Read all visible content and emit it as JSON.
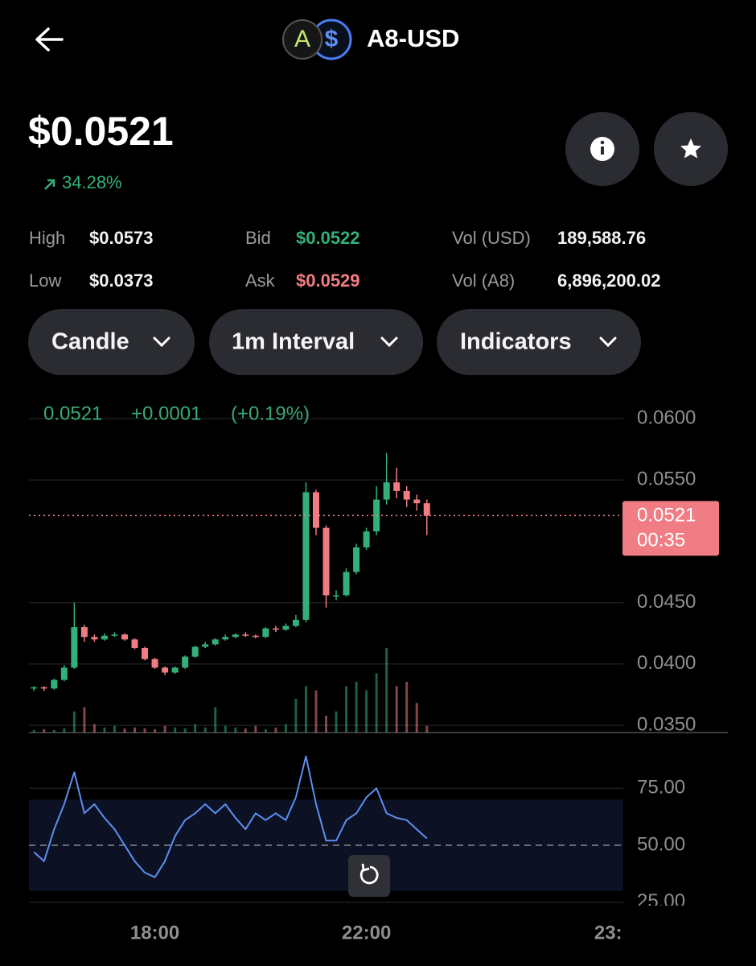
{
  "header": {
    "title": "A8-USD"
  },
  "price": {
    "value": "$0.0521",
    "change": "34.28%"
  },
  "stats": [
    {
      "label": "High",
      "value": "$0.0573"
    },
    {
      "label": "Low",
      "value": "$0.0373"
    },
    {
      "label": "Bid",
      "value": "$0.0522"
    },
    {
      "label": "Ask",
      "value": "$0.0529"
    },
    {
      "label": "Vol (USD)",
      "value": "189,588.76"
    },
    {
      "label": "Vol (A8)",
      "value": "6,896,200.02"
    }
  ],
  "controls": [
    "Candle",
    "1m Interval",
    "Indicators"
  ],
  "chart_data": {
    "type": "candlestick",
    "categories": [
      null,
      null,
      null,
      null,
      null,
      null,
      null,
      null,
      null,
      null,
      null,
      null,
      "18:00",
      null,
      null,
      null,
      null,
      null,
      null,
      null,
      null,
      null,
      null,
      null,
      null,
      null,
      null,
      null,
      null,
      null,
      null,
      null,
      null,
      "22:00",
      null,
      null,
      null,
      null,
      null,
      null,
      null,
      null,
      null,
      null,
      null,
      null,
      null,
      null,
      null,
      null,
      null,
      null,
      null,
      null,
      null,
      null,
      null,
      "23:",
      null
    ],
    "open": [
      0.038,
      0.0381,
      0.038,
      0.0387,
      0.0397,
      0.043,
      0.0422,
      0.042,
      0.0423,
      0.0424,
      0.042,
      0.0413,
      0.0404,
      0.0397,
      0.0393,
      0.0397,
      0.0406,
      0.0414,
      0.0416,
      0.042,
      0.0422,
      0.0424,
      0.0423,
      0.0422,
      0.0429,
      0.0428,
      0.0431,
      0.0436,
      0.054,
      0.0511,
      0.0456,
      0.0456,
      0.0475,
      0.0495,
      0.0508,
      0.0534,
      0.0548,
      0.0541,
      0.0534,
      0.0531,
      null,
      null,
      null,
      null,
      null,
      null,
      null,
      null,
      null,
      null,
      null,
      null,
      null,
      null,
      null,
      null,
      null,
      null,
      null
    ],
    "high": [
      0.0382,
      0.0382,
      0.0388,
      0.0399,
      0.045,
      0.0432,
      0.0424,
      0.0425,
      0.0426,
      0.0425,
      0.0421,
      0.0414,
      0.0405,
      0.0398,
      0.0398,
      0.0407,
      0.0415,
      0.0418,
      0.0421,
      0.0424,
      0.0425,
      0.0426,
      0.0424,
      0.043,
      0.0431,
      0.0433,
      0.044,
      0.0548,
      0.0542,
      0.0513,
      0.046,
      0.0478,
      0.0498,
      0.0511,
      0.0545,
      0.0572,
      0.056,
      0.0545,
      0.0538,
      0.0534,
      null,
      null,
      null,
      null,
      null,
      null,
      null,
      null,
      null,
      null,
      null,
      null,
      null,
      null,
      null,
      null,
      null,
      null,
      null
    ],
    "low": [
      0.0378,
      0.0378,
      0.0379,
      0.0386,
      0.0396,
      0.0418,
      0.0418,
      0.0419,
      0.0422,
      0.0419,
      0.0412,
      0.0403,
      0.0396,
      0.0391,
      0.0392,
      0.0396,
      0.0405,
      0.0413,
      0.0415,
      0.0419,
      0.0421,
      0.0422,
      0.0421,
      0.0421,
      0.0426,
      0.0427,
      0.043,
      0.0434,
      0.0505,
      0.0446,
      0.0452,
      0.0455,
      0.0473,
      0.0493,
      0.0505,
      0.053,
      0.0535,
      0.0528,
      0.0525,
      0.0505,
      null,
      null,
      null,
      null,
      null,
      null,
      null,
      null,
      null,
      null,
      null,
      null,
      null,
      null,
      null,
      null,
      null,
      null,
      null
    ],
    "close": [
      0.0381,
      0.038,
      0.0387,
      0.0397,
      0.043,
      0.0422,
      0.042,
      0.0423,
      0.0424,
      0.042,
      0.0413,
      0.0404,
      0.0397,
      0.0393,
      0.0397,
      0.0406,
      0.0414,
      0.0416,
      0.042,
      0.0422,
      0.0424,
      0.0423,
      0.0422,
      0.0429,
      0.0428,
      0.0431,
      0.0436,
      0.054,
      0.0511,
      0.0456,
      0.0456,
      0.0475,
      0.0495,
      0.0508,
      0.0534,
      0.0548,
      0.0541,
      0.0534,
      0.0531,
      0.0521,
      null,
      null,
      null,
      null,
      null,
      null,
      null,
      null,
      null,
      null,
      null,
      null,
      null,
      null,
      null,
      null,
      null,
      null,
      null
    ],
    "volume": [
      3,
      4,
      3,
      5,
      25,
      30,
      10,
      6,
      8,
      5,
      6,
      5,
      4,
      8,
      6,
      5,
      10,
      6,
      30,
      8,
      6,
      5,
      8,
      4,
      6,
      10,
      40,
      55,
      50,
      20,
      25,
      55,
      60,
      50,
      70,
      100,
      55,
      60,
      35,
      8,
      null,
      null,
      null,
      null,
      null,
      null,
      null,
      null,
      null,
      null,
      null,
      null,
      null,
      null,
      null,
      null,
      null,
      null,
      null
    ],
    "rsi": [
      47,
      43,
      57,
      68,
      82,
      64,
      68,
      62,
      57,
      50,
      43,
      38,
      36,
      43,
      54,
      61,
      64,
      68,
      64,
      68,
      62,
      57,
      64,
      61,
      64,
      61,
      71,
      89,
      68,
      52,
      52,
      61,
      64,
      71,
      75,
      64,
      62,
      61,
      57,
      53,
      null,
      null,
      null,
      null,
      null,
      null,
      null,
      null,
      null,
      null,
      null,
      null,
      null,
      null,
      null,
      null,
      null,
      null,
      null
    ],
    "ylim": [
      0.035,
      0.06
    ],
    "yticks": [
      {
        "value": 0.06,
        "label": "0.0600"
      },
      {
        "value": 0.055,
        "label": "0.0550"
      },
      {
        "value": 0.045,
        "label": "0.0450"
      },
      {
        "value": 0.04,
        "label": "0.0400"
      },
      {
        "value": 0.035,
        "label": "0.0350"
      }
    ],
    "volume_lim": [
      0,
      100
    ],
    "current_price": 0.0521,
    "countdown": "00:35",
    "legend": {
      "change": "+0.0001",
      "change_pct": "(+0.19%)"
    },
    "rsi_ylim": [
      20,
      92
    ],
    "rsi_yticks": [
      {
        "value": 75,
        "label": "75.00"
      },
      {
        "value": 50,
        "label": "50.00"
      },
      {
        "value": 25,
        "label": "25.00"
      }
    ],
    "rsi_band": [
      30,
      70
    ],
    "rsi_midline": 50,
    "grid": true,
    "colors": {
      "up": "#33b07a",
      "down": "#f07d83",
      "rsi": "#5d8ef0",
      "band": "#0c1224"
    }
  }
}
